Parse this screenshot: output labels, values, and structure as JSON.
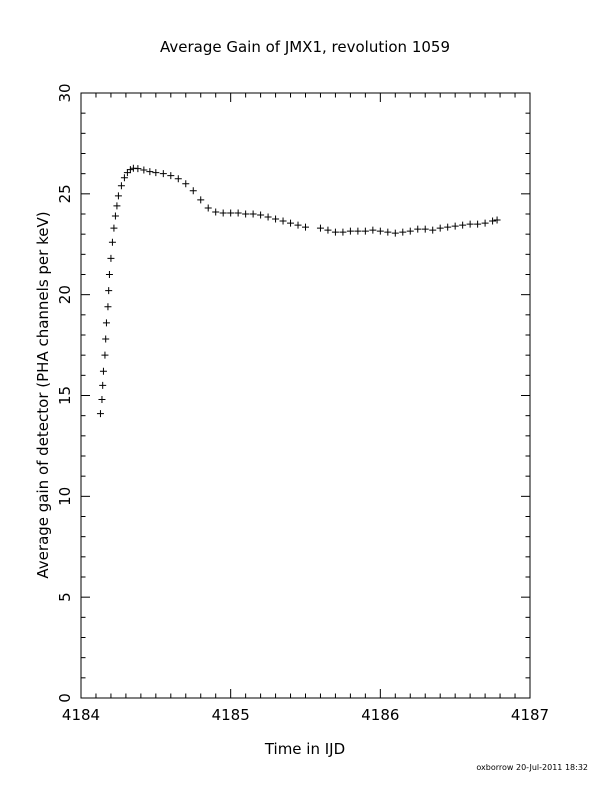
{
  "chart_data": {
    "type": "scatter",
    "title": "Average Gain of JMX1, revolution 1059",
    "xlabel": "Time in IJD",
    "ylabel": "Average gain of detector (PHA channels per keV)",
    "xlim": [
      4184,
      4187
    ],
    "ylim": [
      0,
      30
    ],
    "x_ticks": [
      "4184",
      "4185",
      "4186",
      "4187"
    ],
    "y_ticks": [
      "0",
      "5",
      "10",
      "15",
      "20",
      "25",
      "30"
    ],
    "marker": "plus",
    "grid": false,
    "series": [
      {
        "points": [
          [
            4184.13,
            14.1
          ],
          [
            4184.14,
            14.8
          ],
          [
            4184.145,
            15.5
          ],
          [
            4184.15,
            16.2
          ],
          [
            4184.16,
            17.0
          ],
          [
            4184.165,
            17.8
          ],
          [
            4184.17,
            18.6
          ],
          [
            4184.18,
            19.4
          ],
          [
            4184.185,
            20.2
          ],
          [
            4184.19,
            21.0
          ],
          [
            4184.2,
            21.8
          ],
          [
            4184.21,
            22.6
          ],
          [
            4184.22,
            23.3
          ],
          [
            4184.23,
            23.9
          ],
          [
            4184.24,
            24.4
          ],
          [
            4184.25,
            24.9
          ],
          [
            4184.27,
            25.4
          ],
          [
            4184.29,
            25.8
          ],
          [
            4184.31,
            26.05
          ],
          [
            4184.33,
            26.2
          ],
          [
            4184.35,
            26.27
          ],
          [
            4184.38,
            26.25
          ],
          [
            4184.42,
            26.18
          ],
          [
            4184.46,
            26.1
          ],
          [
            4184.5,
            26.05
          ],
          [
            4184.55,
            26.0
          ],
          [
            4184.6,
            25.9
          ],
          [
            4184.65,
            25.75
          ],
          [
            4184.7,
            25.5
          ],
          [
            4184.75,
            25.15
          ],
          [
            4184.8,
            24.7
          ],
          [
            4184.85,
            24.3
          ],
          [
            4184.9,
            24.1
          ],
          [
            4184.95,
            24.05
          ],
          [
            4185.0,
            24.05
          ],
          [
            4185.05,
            24.05
          ],
          [
            4185.1,
            24.0
          ],
          [
            4185.15,
            24.0
          ],
          [
            4185.2,
            23.95
          ],
          [
            4185.25,
            23.85
          ],
          [
            4185.3,
            23.75
          ],
          [
            4185.35,
            23.65
          ],
          [
            4185.4,
            23.55
          ],
          [
            4185.45,
            23.45
          ],
          [
            4185.5,
            23.35
          ],
          [
            4185.6,
            23.3
          ],
          [
            4185.65,
            23.2
          ],
          [
            4185.7,
            23.1
          ],
          [
            4185.75,
            23.1
          ],
          [
            4185.8,
            23.15
          ],
          [
            4185.85,
            23.15
          ],
          [
            4185.9,
            23.15
          ],
          [
            4185.95,
            23.2
          ],
          [
            4186.0,
            23.15
          ],
          [
            4186.05,
            23.1
          ],
          [
            4186.1,
            23.05
          ],
          [
            4186.15,
            23.1
          ],
          [
            4186.2,
            23.15
          ],
          [
            4186.25,
            23.25
          ],
          [
            4186.3,
            23.25
          ],
          [
            4186.35,
            23.2
          ],
          [
            4186.4,
            23.3
          ],
          [
            4186.45,
            23.35
          ],
          [
            4186.5,
            23.4
          ],
          [
            4186.55,
            23.45
          ],
          [
            4186.6,
            23.5
          ],
          [
            4186.65,
            23.5
          ],
          [
            4186.7,
            23.55
          ],
          [
            4186.75,
            23.65
          ],
          [
            4186.78,
            23.7
          ]
        ]
      }
    ]
  },
  "footer": {
    "credit": "oxborrow 20-Jul-2011 18:32"
  }
}
